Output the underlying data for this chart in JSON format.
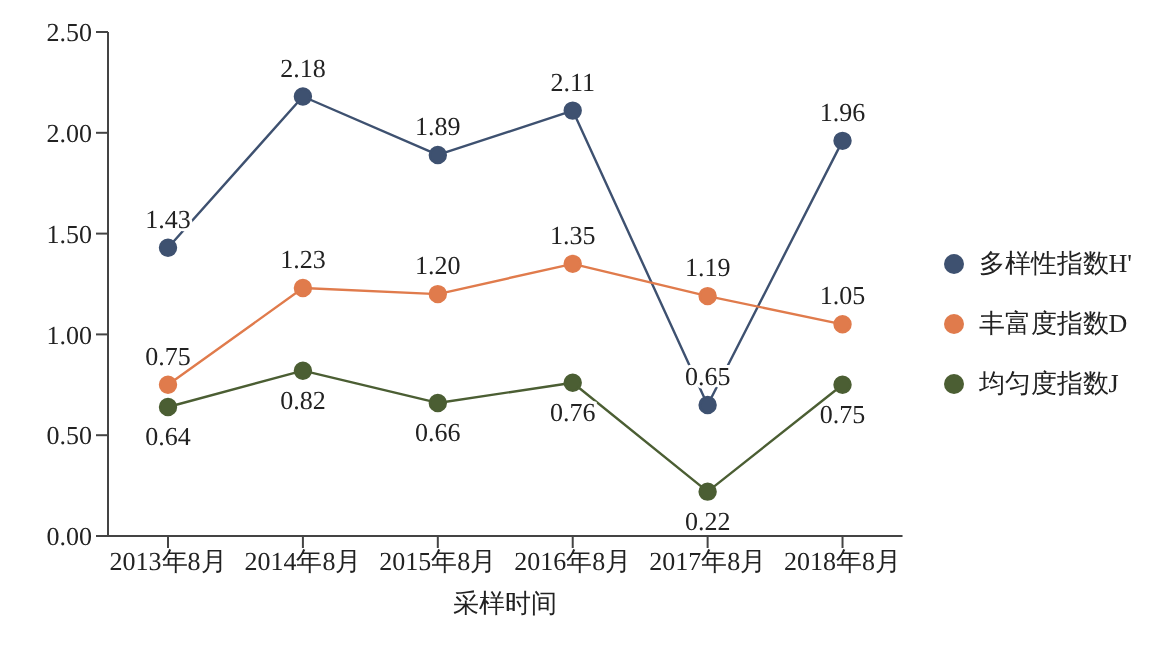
{
  "chart_data": {
    "type": "line",
    "xlabel": "采样时间",
    "categories": [
      "2013年8月",
      "2014年8月",
      "2015年8月",
      "2016年8月",
      "2017年8月",
      "2018年8月"
    ],
    "series": [
      {
        "name": "多样性指数H'",
        "color": "#3e5170",
        "values": [
          1.43,
          2.18,
          1.89,
          2.11,
          0.65,
          1.96
        ],
        "value_labels": [
          "1.43",
          "2.18",
          "1.89",
          "2.11",
          "0.65",
          "1.96"
        ]
      },
      {
        "name": "丰富度指数D",
        "color": "#e07b4c",
        "values": [
          0.75,
          1.23,
          1.2,
          1.35,
          1.19,
          1.05
        ],
        "value_labels": [
          "0.75",
          "1.23",
          "1.20",
          "1.35",
          "1.19",
          "1.05"
        ]
      },
      {
        "name": "均匀度指数J",
        "color": "#4b5e33",
        "values": [
          0.64,
          0.82,
          0.66,
          0.76,
          0.22,
          0.75
        ],
        "value_labels": [
          "0.64",
          "0.82",
          "0.66",
          "0.76",
          "0.22",
          "0.75"
        ]
      }
    ],
    "ylim": [
      0,
      2.5
    ],
    "yticks": [
      {
        "value": 0,
        "label": "0.00"
      },
      {
        "value": 0.5,
        "label": "0.50"
      },
      {
        "value": 1,
        "label": "1.00"
      },
      {
        "value": 1.5,
        "label": "1.50"
      },
      {
        "value": 2,
        "label": "2.00"
      },
      {
        "value": 2.5,
        "label": "2.50"
      }
    ],
    "legend": "right",
    "marker": "circle",
    "line_style": "solid",
    "grid": false
  }
}
